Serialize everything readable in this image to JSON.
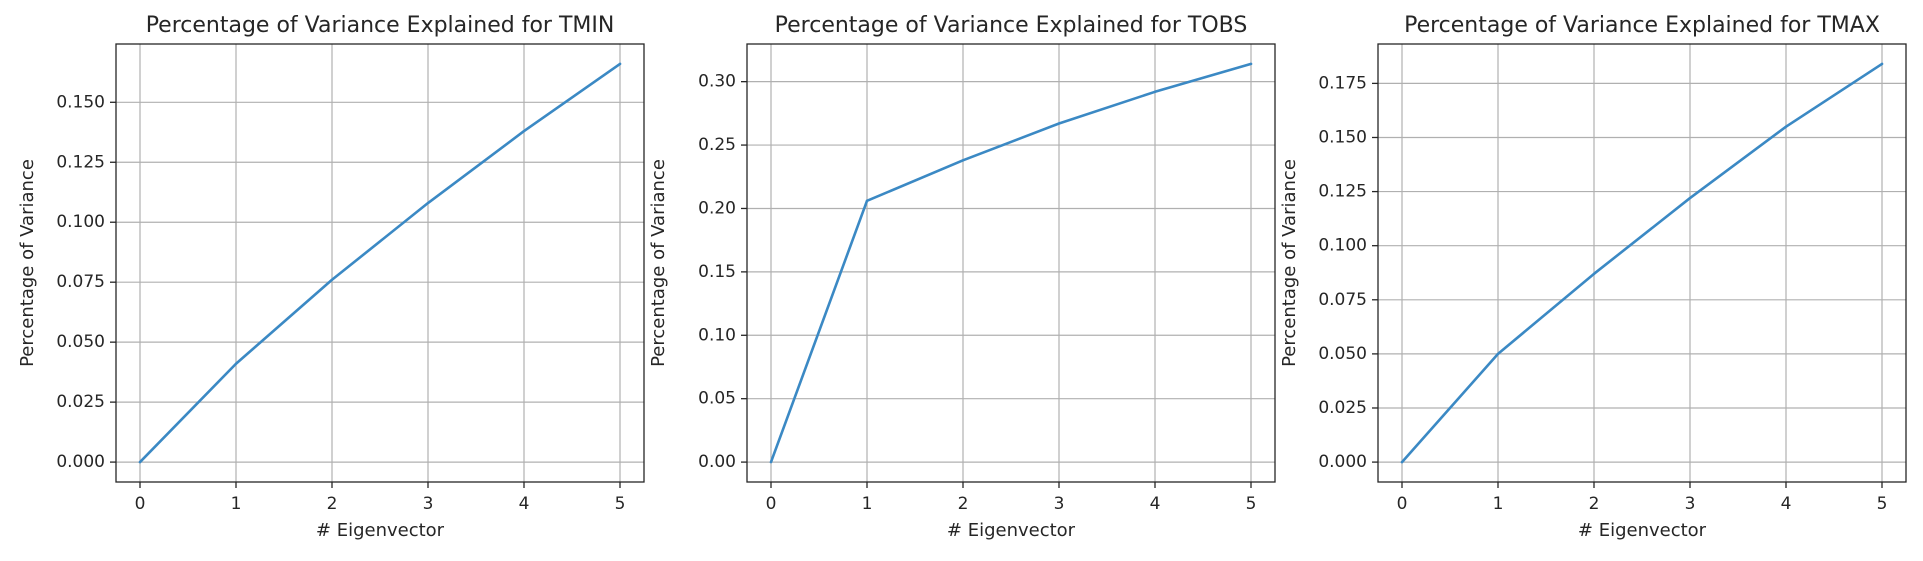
{
  "chart_data": [
    {
      "type": "line",
      "title": "Percentage of Variance Explained for TMIN",
      "xlabel": "# Eigenvector",
      "ylabel": "Percentage of Variance",
      "x": [
        0,
        1,
        2,
        3,
        4,
        5
      ],
      "series": [
        {
          "values": [
            0.0,
            0.041,
            0.076,
            0.108,
            0.138,
            0.166
          ]
        }
      ],
      "xlim": [
        -0.25,
        5.25
      ],
      "ylim": [
        -0.0083,
        0.1743
      ],
      "xticks": [
        0,
        1,
        2,
        3,
        4,
        5
      ],
      "xtick_labels": [
        "0",
        "1",
        "2",
        "3",
        "4",
        "5"
      ],
      "yticks": [
        0.0,
        0.025,
        0.05,
        0.075,
        0.1,
        0.125,
        0.15
      ],
      "ytick_labels": [
        "0.000",
        "0.025",
        "0.050",
        "0.075",
        "0.100",
        "0.125",
        "0.150"
      ],
      "grid": true,
      "color": "#3b89c4"
    },
    {
      "type": "line",
      "title": "Percentage of Variance Explained for TOBS",
      "xlabel": "# Eigenvector",
      "ylabel": "Percentage of Variance",
      "x": [
        0,
        1,
        2,
        3,
        4,
        5
      ],
      "series": [
        {
          "values": [
            0.0,
            0.206,
            0.238,
            0.267,
            0.292,
            0.314
          ]
        }
      ],
      "xlim": [
        -0.25,
        5.25
      ],
      "ylim": [
        -0.0157,
        0.3297
      ],
      "xticks": [
        0,
        1,
        2,
        3,
        4,
        5
      ],
      "xtick_labels": [
        "0",
        "1",
        "2",
        "3",
        "4",
        "5"
      ],
      "yticks": [
        0.0,
        0.05,
        0.1,
        0.15,
        0.2,
        0.25,
        0.3
      ],
      "ytick_labels": [
        "0.00",
        "0.05",
        "0.10",
        "0.15",
        "0.20",
        "0.25",
        "0.30"
      ],
      "grid": true,
      "color": "#3b89c4"
    },
    {
      "type": "line",
      "title": "Percentage of Variance Explained for TMAX",
      "xlabel": "# Eigenvector",
      "ylabel": "Percentage of Variance",
      "x": [
        0,
        1,
        2,
        3,
        4,
        5
      ],
      "series": [
        {
          "values": [
            0.0,
            0.05,
            0.087,
            0.122,
            0.155,
            0.184
          ]
        }
      ],
      "xlim": [
        -0.25,
        5.25
      ],
      "ylim": [
        -0.0092,
        0.1932
      ],
      "xticks": [
        0,
        1,
        2,
        3,
        4,
        5
      ],
      "xtick_labels": [
        "0",
        "1",
        "2",
        "3",
        "4",
        "5"
      ],
      "yticks": [
        0.0,
        0.025,
        0.05,
        0.075,
        0.1,
        0.125,
        0.15,
        0.175
      ],
      "ytick_labels": [
        "0.000",
        "0.025",
        "0.050",
        "0.075",
        "0.100",
        "0.125",
        "0.150",
        "0.175"
      ],
      "grid": true,
      "color": "#3b89c4"
    }
  ]
}
